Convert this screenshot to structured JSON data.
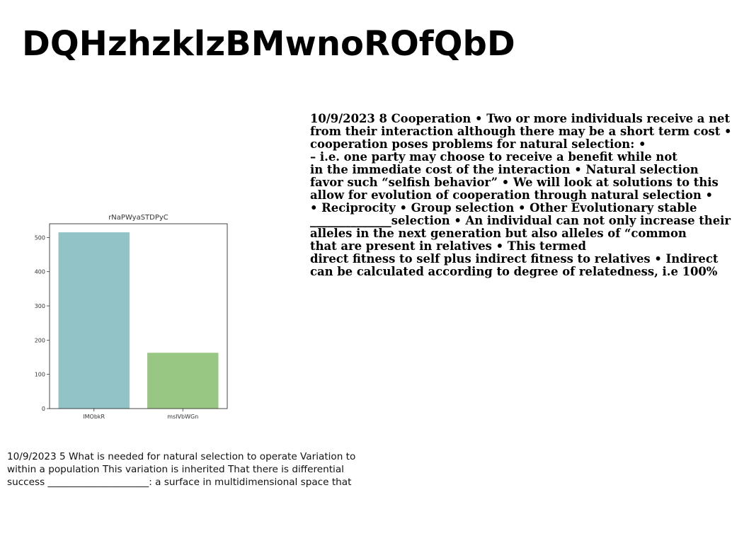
{
  "title": "DQHzhzklzBMwnoROfQbD",
  "right_text": {
    "lines": [
      "10/9/2023 8 Cooperation • Two or more individuals receive a net",
      "from their interaction although there may be a short term cost •",
      "cooperation poses problems for natural selection: •",
      "– i.e. one party may choose to receive a benefit while not",
      "in the immediate cost of the interaction • Natural selection",
      "favor such “selfish behavior” • We will look at solutions to this",
      "allow for evolution of cooperation through natural selection •",
      "• Reciprocity • Group selection • Other Evolutionary stable",
      "______________selection • An individual can not only increase their",
      "alleles in the next generation but also alleles of “common",
      "that are present in relatives • This termed",
      "direct fitness to self plus indirect fitness to relatives • Indirect",
      "can be calculated according to degree of relatedness, i.e 100%"
    ]
  },
  "left_text": {
    "lines": [
      "10/9/2023 5 What is needed for natural selection to operate Variation to",
      "within a population This variation is inherited That there is differential",
      "success _____________________: a surface in multidimensional space that"
    ]
  },
  "chart_data": {
    "type": "bar",
    "title": "rNaPWyaSTDPyC",
    "categories": [
      "lMObkR",
      "msIVbWGn"
    ],
    "values": [
      515,
      163
    ],
    "colors": [
      "#92c4c7",
      "#98c683"
    ],
    "yticks": [
      0,
      100,
      200,
      300,
      400,
      500
    ],
    "ylim": [
      0,
      540
    ],
    "xlabel": "",
    "ylabel": "",
    "grid": false
  }
}
